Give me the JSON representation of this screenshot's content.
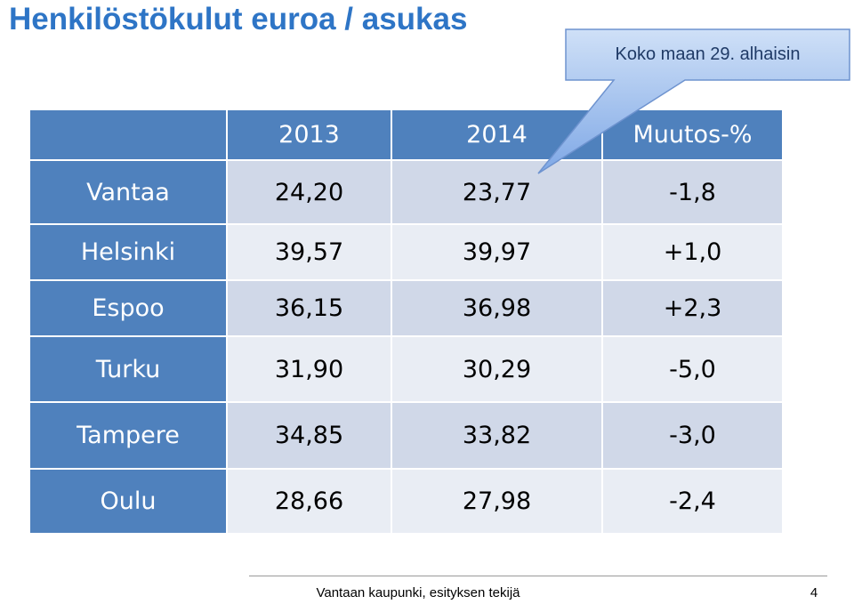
{
  "header": {
    "title": "Henkilöstökulut euroa / asukas"
  },
  "callout": {
    "text": "Koko maan 29. alhaisin"
  },
  "table": {
    "columns": [
      "2013",
      "2014",
      "Muutos-%"
    ],
    "rows": [
      [
        "Vantaa",
        "24,20",
        "23,77",
        "-1,8"
      ],
      [
        "Helsinki",
        "39,57",
        "39,97",
        "+1,0"
      ],
      [
        "Espoo",
        "36,15",
        "36,98",
        "+2,3"
      ],
      [
        "Turku",
        "31,90",
        "30,29",
        "-5,0"
      ],
      [
        "Tampere",
        "34,85",
        "33,82",
        "-3,0"
      ],
      [
        "Oulu",
        "28,66",
        "27,98",
        "-2,4"
      ]
    ]
  },
  "footer": {
    "text": "Vantaan kaupunki, esityksen tekijä",
    "page": "4"
  }
}
